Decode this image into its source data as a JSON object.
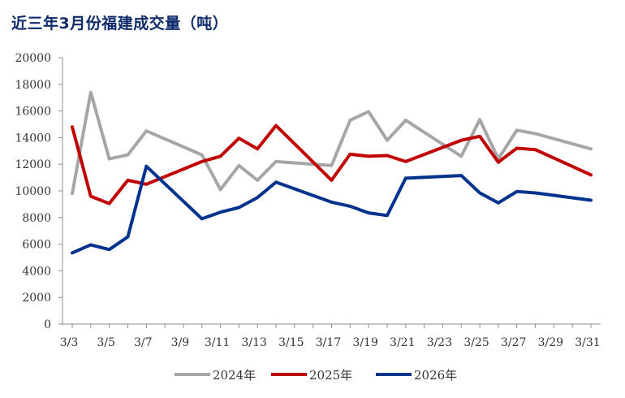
{
  "chart_data": {
    "type": "line",
    "title": "近三年3月份福建成交量（吨）",
    "xlabel": "",
    "ylabel": "",
    "ylim": [
      0,
      20000
    ],
    "yticks": [
      0,
      2000,
      4000,
      6000,
      8000,
      10000,
      12000,
      14000,
      16000,
      18000,
      20000
    ],
    "x_range": [
      3,
      31
    ],
    "xtick_values": [
      3,
      5,
      7,
      9,
      11,
      13,
      15,
      17,
      19,
      21,
      23,
      25,
      27,
      29,
      31
    ],
    "xtick_labels": [
      "3/3",
      "3/5",
      "3/7",
      "3/9",
      "3/11",
      "3/13",
      "3/15",
      "3/17",
      "3/19",
      "3/21",
      "3/23",
      "3/25",
      "3/27",
      "3/29",
      "3/31"
    ],
    "legend_position": "bottom-center",
    "grid": false,
    "series": [
      {
        "name": "2024年",
        "color": "#a6a6a6",
        "x": [
          3,
          4,
          5,
          6,
          7,
          10,
          11,
          12,
          13,
          14,
          17,
          18,
          19,
          20,
          21,
          24,
          25,
          26,
          27,
          28,
          31
        ],
        "values": [
          9800,
          17400,
          12400,
          12700,
          14500,
          12700,
          10100,
          11900,
          10800,
          12200,
          11900,
          15300,
          15950,
          13800,
          15300,
          12600,
          15350,
          12400,
          14550,
          14300,
          13150
        ]
      },
      {
        "name": "2025年",
        "color": "#c00000",
        "x": [
          3,
          4,
          5,
          6,
          7,
          10,
          11,
          12,
          13,
          14,
          17,
          18,
          19,
          20,
          21,
          24,
          25,
          26,
          27,
          28,
          31
        ],
        "values": [
          14800,
          9600,
          9050,
          10800,
          10500,
          12200,
          12600,
          13950,
          13150,
          14900,
          10800,
          12750,
          12600,
          12650,
          12200,
          13800,
          14100,
          12150,
          13200,
          13100,
          11200
        ]
      },
      {
        "name": "2026年",
        "color": "#00338d",
        "x": [
          3,
          4,
          5,
          6,
          7,
          10,
          11,
          12,
          13,
          14,
          17,
          18,
          19,
          20,
          21,
          24,
          25,
          26,
          27,
          28,
          31
        ],
        "values": [
          5350,
          5950,
          5600,
          6550,
          11850,
          7900,
          8400,
          8750,
          9500,
          10650,
          9150,
          8850,
          8350,
          8150,
          10950,
          11150,
          9850,
          9100,
          9950,
          9850,
          9300
        ]
      }
    ]
  }
}
